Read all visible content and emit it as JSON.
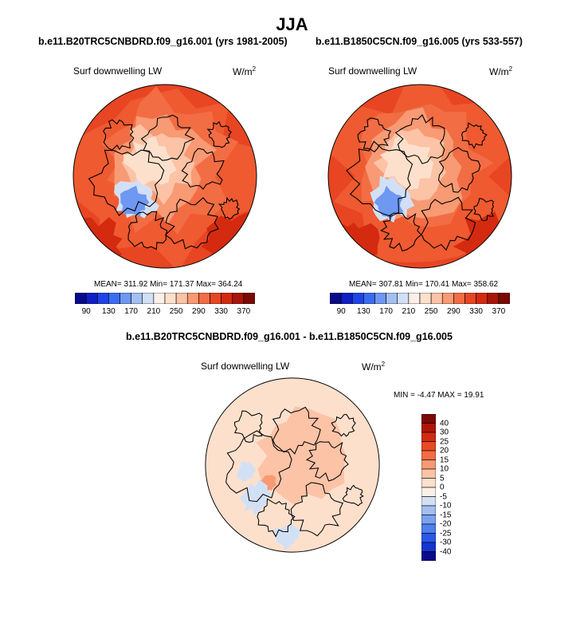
{
  "title": "JJA",
  "chart_data": [
    {
      "type": "heatmap",
      "projection": "north-polar-stereographic",
      "title": "b.e11.B20TRC5CNBDRD.f09_g16.001 (yrs 1981-2005)",
      "variable": "Surf downwelling LW",
      "units_base": "W/m",
      "units_exp": "2",
      "stats": "MEAN= 311.92  Min= 171.37  Max= 364.24",
      "mean": 311.92,
      "min": 171.37,
      "max": 364.24,
      "colorbar": {
        "orientation": "horizontal",
        "levels": [
          90,
          110,
          130,
          150,
          170,
          190,
          210,
          230,
          250,
          270,
          290,
          310,
          330,
          350,
          370
        ],
        "tick_labels": [
          "90",
          "130",
          "170",
          "210",
          "250",
          "290",
          "330",
          "370"
        ],
        "colors": [
          "#0a0a8a",
          "#0f1fc4",
          "#1f43e6",
          "#3a6cf2",
          "#6e98f2",
          "#a3bff0",
          "#d2e0f6",
          "#fbf0e8",
          "#fde0cc",
          "#fcc3a6",
          "#f89a74",
          "#f26d44",
          "#e84523",
          "#d42a10",
          "#a8150a",
          "#7a0a05"
        ]
      }
    },
    {
      "type": "heatmap",
      "projection": "north-polar-stereographic",
      "title": "b.e11.B1850C5CN.f09_g16.005 (yrs 533-557)",
      "variable": "Surf downwelling LW",
      "units_base": "W/m",
      "units_exp": "2",
      "stats": "MEAN= 307.81  Min= 170.41  Max= 358.62",
      "mean": 307.81,
      "min": 170.41,
      "max": 358.62,
      "colorbar": {
        "orientation": "horizontal",
        "levels": [
          90,
          110,
          130,
          150,
          170,
          190,
          210,
          230,
          250,
          270,
          290,
          310,
          330,
          350,
          370
        ],
        "tick_labels": [
          "90",
          "130",
          "170",
          "210",
          "250",
          "290",
          "330",
          "370"
        ],
        "colors": [
          "#0a0a8a",
          "#0f1fc4",
          "#1f43e6",
          "#3a6cf2",
          "#6e98f2",
          "#a3bff0",
          "#d2e0f6",
          "#fbf0e8",
          "#fde0cc",
          "#fcc3a6",
          "#f89a74",
          "#f26d44",
          "#e84523",
          "#d42a10",
          "#a8150a",
          "#7a0a05"
        ]
      }
    },
    {
      "type": "heatmap",
      "projection": "north-polar-stereographic",
      "title": "b.e11.B20TRC5CNBDRD.f09_g16.001 - b.e11.B1850C5CN.f09_g16.005",
      "variable": "Surf downwelling LW",
      "units_base": "W/m",
      "units_exp": "2",
      "stats": "MIN =  -4.47 MAX =  19.91",
      "min": -4.47,
      "max": 19.91,
      "colorbar": {
        "orientation": "vertical",
        "tick_labels": [
          "40",
          "30",
          "25",
          "20",
          "15",
          "10",
          "5",
          "0",
          "-5",
          "-10",
          "-15",
          "-20",
          "-25",
          "-30",
          "-40"
        ],
        "colors": [
          "#7a0a05",
          "#b01508",
          "#d42a10",
          "#ea4a22",
          "#f26d44",
          "#f89a74",
          "#fcc3a6",
          "#fde0cc",
          "#fbf0e8",
          "#d2e0f6",
          "#a3bff0",
          "#7aa2f2",
          "#4f7ff0",
          "#2a58ea",
          "#1535d0",
          "#0a0a8a"
        ]
      }
    }
  ]
}
